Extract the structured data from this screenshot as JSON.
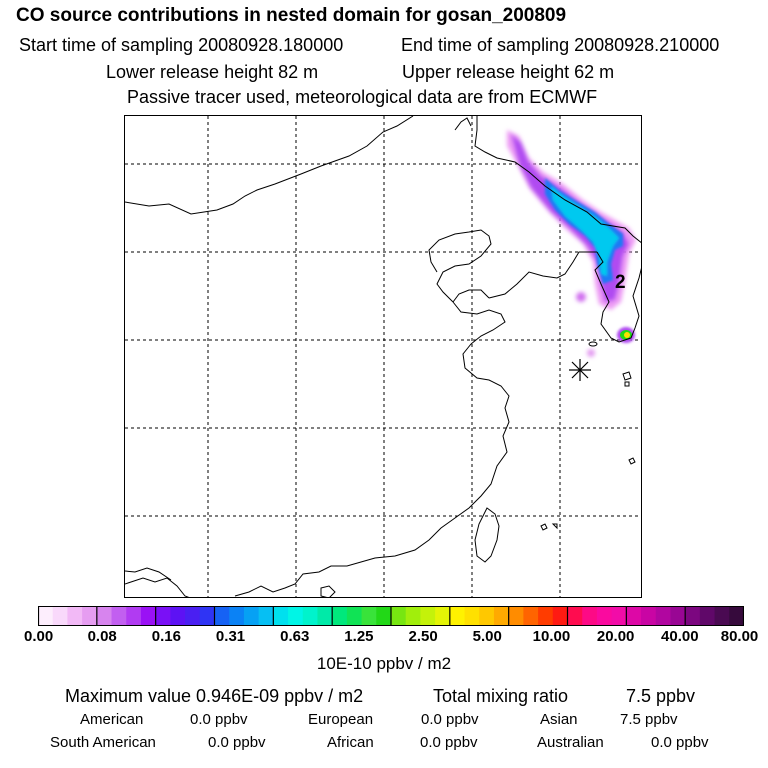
{
  "header": {
    "title": "CO  source contributions in nested domain for gosan_200809",
    "start_label": "Start time of sampling 20080928.180000",
    "end_label": "End time of sampling 20080928.210000",
    "lower_label": "Lower release height   82 m",
    "upper_label": "Upper release height   62 m",
    "tracer_note": "Passive tracer used, meteorological data are from ECMWF"
  },
  "map": {
    "marker_label": "2",
    "receptor_symbol": "✳"
  },
  "colorbar": {
    "unit": "10E-10 ppbv / m2",
    "labels": [
      "0.00",
      "0.08",
      "0.16",
      "0.31",
      "0.63",
      "1.25",
      "2.50",
      "5.00",
      "10.00",
      "20.00",
      "40.00",
      "80.00"
    ],
    "colors": [
      "#fdeefd",
      "#f9d9fb",
      "#f2b9f6",
      "#e69df1",
      "#d784ee",
      "#c25ff0",
      "#b13bf2",
      "#9a11f5",
      "#7a10f6",
      "#5d12f4",
      "#4a1ff2",
      "#2f34f4",
      "#1662f4",
      "#0b82f5",
      "#06a1f4",
      "#06bff3",
      "#00e0ee",
      "#00f5e6",
      "#00f3cc",
      "#00eaa8",
      "#00e87c",
      "#10e355",
      "#39e33a",
      "#22d817",
      "#77e611",
      "#a1ee0c",
      "#c4f20a",
      "#e4f406",
      "#fff200",
      "#ffe000",
      "#ffc800",
      "#ffaa00",
      "#ff8c00",
      "#ff6400",
      "#ff3c00",
      "#ff1a12",
      "#ff0c4f",
      "#fd0a86",
      "#fa0a9f",
      "#f20ca8",
      "#dd08a6",
      "#c905a4",
      "#b106a0",
      "#990694",
      "#7c0780",
      "#600869",
      "#4a0a52",
      "#360a3c"
    ]
  },
  "summary": {
    "max_label": "Maximum value  0.946E-09 ppbv / m2",
    "total_label": "Total mixing ratio",
    "total_value": "7.5 ppbv",
    "american_label": "American",
    "american_value": "0.0 ppbv",
    "european_label": "European",
    "european_value": "0.0 ppbv",
    "asian_label": "Asian",
    "asian_value": "7.5 ppbv",
    "south_american_label": "South American",
    "south_american_value": "0.0 ppbv",
    "african_label": "African",
    "african_value": "0.0 ppbv",
    "australian_label": "Australian",
    "australian_value": "0.0 ppbv"
  }
}
